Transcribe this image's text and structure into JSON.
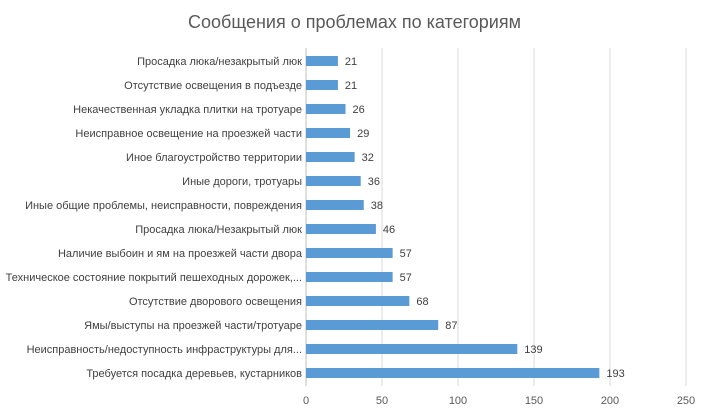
{
  "chart_data": {
    "type": "bar",
    "orientation": "horizontal",
    "title": "Сообщения о проблемах по категориям",
    "categories": [
      "Просадка люка/незакрытый люк",
      "Отсутствие освещения в подъезде",
      "Некачественная укладка плитки на тротуаре",
      "Неисправное освещение на проезжей части",
      "Иное благоустройство территории",
      "Иные дороги, тротуары",
      "Иные общие проблемы, неисправности, повреждения",
      "Просадка люка/Незакрытый люк",
      "Наличие выбоин и ям на проезжей части двора",
      "Техническое состояние покрытий пешеходных дорожек,...",
      "Отсутствие дворового освещения",
      "Ямы/выступы на проезжей части/тротуаре",
      "Неисправность/недоступность инфраструктуры для...",
      "Требуется посадка деревьев, кустарников"
    ],
    "values": [
      21,
      21,
      26,
      29,
      32,
      36,
      38,
      46,
      57,
      57,
      68,
      87,
      139,
      193
    ],
    "xlim": [
      0,
      250
    ],
    "xticks": [
      0,
      50,
      100,
      150,
      200,
      250
    ],
    "grid": true,
    "bar_color": "#5b9bd5",
    "data_labels": true
  }
}
